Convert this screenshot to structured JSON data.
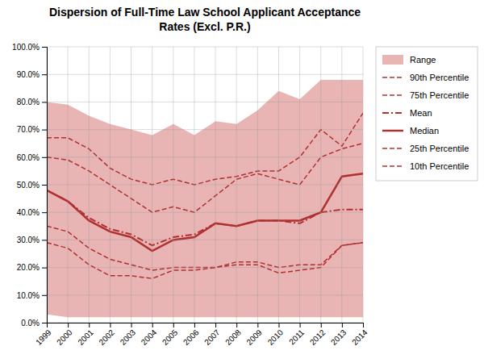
{
  "chart_data": {
    "type": "line",
    "title": "Dispersion of Full-Time Law School Applicant Acceptance\nRates (Excl. P.R.)",
    "x": [
      1999,
      2000,
      2001,
      2002,
      2003,
      2004,
      2005,
      2006,
      2007,
      2008,
      2009,
      2010,
      2011,
      2012,
      2013,
      2014
    ],
    "series": [
      {
        "name": "Range",
        "type": "area",
        "color": "#e8b4b4",
        "values": [
          0.8,
          0.79,
          0.75,
          0.72,
          0.7,
          0.68,
          0.72,
          0.68,
          0.73,
          0.72,
          0.77,
          0.84,
          0.81,
          0.88,
          0.88,
          0.88
        ],
        "lower": [
          0.03,
          0.02,
          0.02,
          0.02,
          0.02,
          0.02,
          0.02,
          0.02,
          0.02,
          0.02,
          0.02,
          0.02,
          0.02,
          0.02,
          0.02,
          0.02
        ]
      },
      {
        "name": "90th Percentile",
        "type": "line",
        "color": "#b03030",
        "line_style": "dashed",
        "values": [
          0.67,
          0.67,
          0.63,
          0.56,
          0.52,
          0.5,
          0.52,
          0.5,
          0.52,
          0.53,
          0.55,
          0.55,
          0.6,
          0.7,
          0.64,
          0.76
        ]
      },
      {
        "name": "75th Percentile",
        "type": "line",
        "color": "#b03030",
        "line_style": "dashed",
        "values": [
          0.6,
          0.59,
          0.55,
          0.5,
          0.45,
          0.4,
          0.42,
          0.4,
          0.46,
          0.52,
          0.54,
          0.52,
          0.5,
          0.6,
          0.63,
          0.65
        ]
      },
      {
        "name": "Mean",
        "type": "line",
        "color": "#b03030",
        "line_style": "dashdot",
        "values": [
          0.48,
          0.44,
          0.38,
          0.34,
          0.32,
          0.28,
          0.31,
          0.32,
          0.36,
          0.35,
          0.37,
          0.37,
          0.36,
          0.4,
          0.41,
          0.41
        ]
      },
      {
        "name": "Median",
        "type": "line",
        "color": "#b03030",
        "line_style": "solid",
        "values": [
          0.48,
          0.44,
          0.37,
          0.33,
          0.31,
          0.26,
          0.3,
          0.31,
          0.36,
          0.35,
          0.37,
          0.37,
          0.37,
          0.4,
          0.53,
          0.54
        ]
      },
      {
        "name": "25th Percentile",
        "type": "line",
        "color": "#b03030",
        "line_style": "dashed",
        "values": [
          0.35,
          0.33,
          0.27,
          0.23,
          0.21,
          0.19,
          0.2,
          0.2,
          0.2,
          0.22,
          0.22,
          0.2,
          0.21,
          0.21,
          0.28,
          0.29
        ]
      },
      {
        "name": "10th Percentile",
        "type": "line",
        "color": "#b03030",
        "line_style": "dashed",
        "values": [
          0.29,
          0.27,
          0.21,
          0.17,
          0.17,
          0.16,
          0.19,
          0.19,
          0.2,
          0.21,
          0.21,
          0.18,
          0.19,
          0.2,
          0.28,
          0.29
        ]
      }
    ],
    "xlim": [
      1999,
      2014
    ],
    "xticks": [
      1999,
      2000,
      2001,
      2002,
      2003,
      2004,
      2005,
      2006,
      2007,
      2008,
      2009,
      2010,
      2011,
      2012,
      2013,
      2014
    ],
    "ylim": [
      0.0,
      1.0
    ],
    "yticks": [
      {
        "value": 0.0,
        "label": "0.0%"
      },
      {
        "value": 0.1,
        "label": "10.0%"
      },
      {
        "value": 0.2,
        "label": "20.0%"
      },
      {
        "value": 0.3,
        "label": "30.0%"
      },
      {
        "value": 0.4,
        "label": "40.0%"
      },
      {
        "value": 0.5,
        "label": "50.0%"
      },
      {
        "value": 0.6,
        "label": "60.0%"
      },
      {
        "value": 0.7,
        "label": "70.0%"
      },
      {
        "value": 0.8,
        "label": "80.0%"
      },
      {
        "value": 0.9,
        "label": "90.0%"
      },
      {
        "value": 1.0,
        "label": "100.0%"
      }
    ],
    "grid": true,
    "legend": "right"
  }
}
